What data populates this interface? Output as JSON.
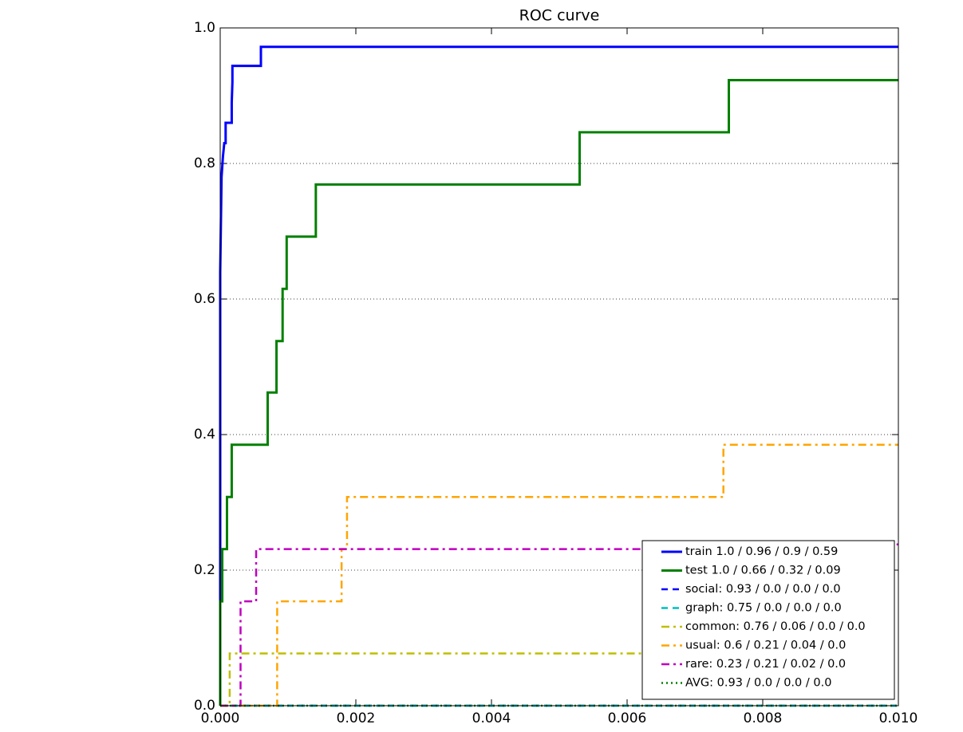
{
  "chart_data": {
    "type": "line",
    "title": "ROC curve",
    "xlim": [
      0,
      0.01
    ],
    "ylim": [
      0,
      1
    ],
    "xticks": [
      {
        "value": 0,
        "label": "0.000"
      },
      {
        "value": 0.002,
        "label": "0.002"
      },
      {
        "value": 0.004,
        "label": "0.004"
      },
      {
        "value": 0.006,
        "label": "0.006"
      },
      {
        "value": 0.008,
        "label": "0.008"
      },
      {
        "value": 0.01,
        "label": "0.010"
      }
    ],
    "yticks": [
      {
        "value": 0,
        "label": "0.0"
      },
      0.2,
      0.4,
      0.6,
      0.8,
      {
        "value": 1,
        "label": "1.0"
      }
    ],
    "grid": true,
    "legend": "lower right",
    "series": [
      {
        "name": "train 1.0 / 0.96 / 0.9 / 0.59",
        "color": "#0000ff",
        "linestyle": "solid",
        "x": [
          0,
          0,
          2e-05,
          4e-05,
          6e-05,
          8e-05,
          8e-05,
          0.00017,
          0.00017,
          0.00018,
          0.00018,
          0.0006,
          0.0006,
          0.01
        ],
        "values": [
          0,
          0.64,
          0.78,
          0.81,
          0.83,
          0.83,
          0.86,
          0.86,
          0.89,
          0.92,
          0.944,
          0.944,
          0.972,
          0.972
        ]
      },
      {
        "name": "test 1.0 / 0.66 / 0.32 / 0.09",
        "color": "#008000",
        "linestyle": "solid",
        "x": [
          0,
          0,
          3e-05,
          3e-05,
          0.0001,
          0.0001,
          0.00017,
          0.00017,
          0.0007,
          0.0007,
          0.00083,
          0.00083,
          0.00092,
          0.00092,
          0.00098,
          0.00098,
          0.00141,
          0.00141,
          0.0053,
          0.0053,
          0.0075,
          0.0075,
          0.01
        ],
        "values": [
          0,
          0.154,
          0.154,
          0.231,
          0.231,
          0.308,
          0.308,
          0.385,
          0.385,
          0.462,
          0.462,
          0.538,
          0.538,
          0.615,
          0.615,
          0.692,
          0.692,
          0.769,
          0.769,
          0.846,
          0.846,
          0.923,
          0.923
        ]
      },
      {
        "name": "social: 0.93 / 0.0 / 0.0 / 0.0",
        "color": "#0000ff",
        "linestyle": "dashed",
        "x": [
          0,
          0.01
        ],
        "values": [
          0,
          0
        ]
      },
      {
        "name": "graph: 0.75 / 0.0 / 0.0 / 0.0",
        "color": "#00bfbf",
        "linestyle": "dashed",
        "x": [
          0,
          0.01
        ],
        "values": [
          0,
          0
        ]
      },
      {
        "name": "common: 0.76 / 0.06 / 0.0 / 0.0",
        "color": "#bfbf00",
        "linestyle": "dashdot",
        "x": [
          0,
          0.00014,
          0.00014,
          0.0082,
          0.0082,
          0.01
        ],
        "values": [
          0,
          0,
          0.077,
          0.077,
          0.154,
          0.154
        ]
      },
      {
        "name": "usual: 0.6 / 0.21 / 0.04 / 0.0",
        "color": "#ffa500",
        "linestyle": "dashdot",
        "x": [
          0,
          0.00084,
          0.00084,
          0.00179,
          0.00179,
          0.00187,
          0.00187,
          0.00742,
          0.00742,
          0.01
        ],
        "values": [
          0,
          0,
          0.154,
          0.154,
          0.231,
          0.231,
          0.308,
          0.308,
          0.385,
          0.385
        ]
      },
      {
        "name": "rare: 0.23 / 0.21 / 0.02 / 0.0",
        "color": "#bf00bf",
        "linestyle": "dashdot",
        "x": [
          0,
          0.0003,
          0.0003,
          0.00053,
          0.00053,
          0.0065,
          0.0065,
          0.01
        ],
        "values": [
          0,
          0,
          0.154,
          0.154,
          0.231,
          0.231,
          0.238,
          0.238
        ]
      },
      {
        "name": "AVG: 0.93 / 0.0 / 0.0 / 0.0",
        "color": "#008000",
        "linestyle": "dotted",
        "x": [
          0,
          0.01
        ],
        "values": [
          0,
          0
        ]
      }
    ]
  }
}
